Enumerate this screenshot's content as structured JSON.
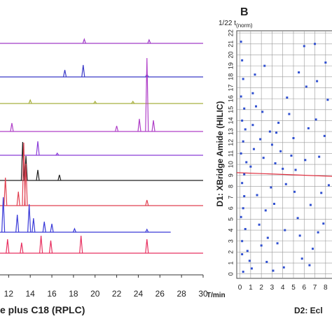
{
  "chart_data": [
    {
      "type": "chromatogram",
      "x_label": "T/min",
      "bottom_label": "e plus C18 (RPLC)",
      "xlim": [
        11.2,
        30
      ],
      "xticks": [
        12,
        14,
        16,
        18,
        20,
        22,
        24,
        26,
        28,
        30
      ],
      "series": [
        {
          "color": "#a03cc8",
          "end": 30,
          "peaks": [
            {
              "t": 19,
              "height": 6
            },
            {
              "t": 25,
              "height": 5
            }
          ]
        },
        {
          "color": "#3a3ac8",
          "end": 30,
          "peaks": [
            {
              "t": 17.2,
              "height": 10
            },
            {
              "t": 18.9,
              "height": 17
            },
            {
              "t": 24.8,
              "height": 4
            }
          ]
        },
        {
          "color": "#a8b040",
          "end": 30,
          "peaks": [
            {
              "t": 14,
              "height": 5
            },
            {
              "t": 20,
              "height": 3
            },
            {
              "t": 23.5,
              "height": 3
            }
          ]
        },
        {
          "color": "#b040c8",
          "end": 30,
          "peaks": [
            {
              "t": 12.3,
              "height": 12
            },
            {
              "t": 22,
              "height": 8
            },
            {
              "t": 24.1,
              "height": 18
            },
            {
              "t": 24.8,
              "height": 105
            },
            {
              "t": 25.4,
              "height": 16
            }
          ]
        },
        {
          "color": "#8a3cd8",
          "end": 30,
          "peaks": [
            {
              "t": 14.7,
              "height": 20
            },
            {
              "t": 16.5,
              "height": 3
            }
          ]
        },
        {
          "color": "#202020",
          "end": 30,
          "peaks": [
            {
              "t": 13.3,
              "height": 55
            },
            {
              "t": 13.6,
              "height": 35
            },
            {
              "t": 14.7,
              "height": 15
            },
            {
              "t": 16.7,
              "height": 8
            }
          ]
        },
        {
          "color": "#e04050",
          "end": 30,
          "peaks": [
            {
              "t": 11.7,
              "height": 40
            },
            {
              "t": 12.9,
              "height": 20
            },
            {
              "t": 13.4,
              "height": 90
            },
            {
              "t": 13.6,
              "height": 60
            },
            {
              "t": 24.8,
              "height": 8
            }
          ]
        },
        {
          "color": "#3a3ad8",
          "end": 27,
          "peaks": [
            {
              "t": 11.5,
              "height": 50
            },
            {
              "t": 12.8,
              "height": 25
            },
            {
              "t": 13.9,
              "height": 40
            },
            {
              "t": 14.3,
              "height": 20
            },
            {
              "t": 15.3,
              "height": 15
            },
            {
              "t": 16.0,
              "height": 12
            },
            {
              "t": 18.1,
              "height": 5
            },
            {
              "t": 24.8,
              "height": 4
            }
          ]
        },
        {
          "color": "#e83060",
          "end": 30,
          "peaks": [
            {
              "t": 11.9,
              "height": 20
            },
            {
              "t": 13.2,
              "height": 15
            },
            {
              "t": 15,
              "height": 25
            },
            {
              "t": 15.9,
              "height": 18
            },
            {
              "t": 18.7,
              "height": 25
            },
            {
              "t": 24.8,
              "height": 20
            }
          ]
        }
      ]
    },
    {
      "type": "scatter",
      "panel_label": "B",
      "y_unit": "1/22 t",
      "y_unit_sub": "(norm)",
      "y_label": "D1: XBridge Amide (HILIC)",
      "x_label": "D2: Ecl",
      "xlim": [
        -0.3,
        8.6
      ],
      "ylim": [
        -0.4,
        22.2
      ],
      "xticks": [
        0,
        1,
        2,
        3,
        4,
        5,
        6,
        7,
        8
      ],
      "yticks": [
        0,
        1,
        2,
        3,
        4,
        5,
        6,
        7,
        8,
        9,
        10,
        11,
        12,
        13,
        14,
        15,
        16,
        17,
        18,
        19,
        20,
        21,
        22
      ],
      "grid": true,
      "color": "#3050d0",
      "fit_x": [
        -0.3,
        9
      ],
      "fit_y": [
        9.25,
        8.9
      ],
      "fit_color": "#e03040",
      "x": [
        0.1,
        0.2,
        0.3,
        0.1,
        0.4,
        0.2,
        0.5,
        0.3,
        0.1,
        0.6,
        0.2,
        0.4,
        0.3,
        0.1,
        0.5,
        0.2,
        0.7,
        0.9,
        1.1,
        1.0,
        1.3,
        1.2,
        1.5,
        1.4,
        1.6,
        1.8,
        2.0,
        1.9,
        2.2,
        2.1,
        2.4,
        2.6,
        2.5,
        2.8,
        3.0,
        2.9,
        3.2,
        3.4,
        3.3,
        3.6,
        3.8,
        3.5,
        4.0,
        4.2,
        4.1,
        4.4,
        4.6,
        4.8,
        5.0,
        5.2,
        5.1,
        5.4,
        5.6,
        5.8,
        6.0,
        6.2,
        6.4,
        6.1,
        6.6,
        6.8,
        7.0,
        7.2,
        7.1,
        7.4,
        7.6,
        7.8,
        8.0,
        8.2,
        7.9,
        8.3,
        0.3,
        0.2,
        1.2,
        2.3,
        3.1,
        4.3,
        5.5,
        6.5,
        7.3,
        0.4
      ],
      "values": [
        21.2,
        19.5,
        17.8,
        16.2,
        15.1,
        14.0,
        13.2,
        12.1,
        11.0,
        10.2,
        8.3,
        7.1,
        6.0,
        5.2,
        4.1,
        3.0,
        2.1,
        1.2,
        0.5,
        9.8,
        11.4,
        13.6,
        15.3,
        18.2,
        7.2,
        4.5,
        2.6,
        12.3,
        10.6,
        14.8,
        5.8,
        3.3,
        1.1,
        13.0,
        11.8,
        7.9,
        6.4,
        12.9,
        10.1,
        13.8,
        11.2,
        2.8,
        9.6,
        4.0,
        0.6,
        16.1,
        14.6,
        10.8,
        12.4,
        9.5,
        7.5,
        5.1,
        3.5,
        1.4,
        20.8,
        17.1,
        13.3,
        10.4,
        6.3,
        2.3,
        21.0,
        17.6,
        14.1,
        10.7,
        7.4,
        4.6,
        19.3,
        15.9,
        12.6,
        8.1,
        0.2,
        1.8,
        16.5,
        19.0,
        0.3,
        8.2,
        18.4,
        0.8,
        3.8,
        9.1
      ]
    }
  ]
}
